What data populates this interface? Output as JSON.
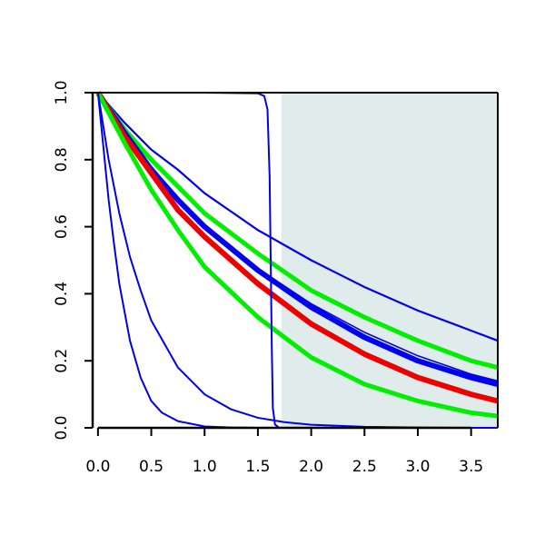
{
  "chart_data": {
    "type": "line",
    "title": "",
    "xlabel": "",
    "ylabel": "",
    "xlim": [
      -0.05,
      3.75
    ],
    "ylim": [
      0.0,
      1.0
    ],
    "x_ticks": [
      0.0,
      0.5,
      1.0,
      1.5,
      2.0,
      2.5,
      3.0,
      3.5
    ],
    "x_tick_labels": [
      "0.0",
      "0.5",
      "1.0",
      "1.5",
      "2.0",
      "2.5",
      "3.0",
      "3.5"
    ],
    "y_ticks": [
      0.0,
      0.2,
      0.4,
      0.6,
      0.8,
      1.0
    ],
    "y_tick_labels": [
      "0.0",
      "0.2",
      "0.4",
      "0.6",
      "0.8",
      "1.0"
    ],
    "grid": false,
    "legend": "none",
    "shaded_region": {
      "x": [
        1.72,
        3.75
      ],
      "color": "#dfeceb"
    },
    "colors": {
      "blue": "#0000ee",
      "green": "#00ee00",
      "red": "#ee0000",
      "axis": "#000000"
    },
    "series": [
      {
        "color": "#0000ee",
        "width": 2.2,
        "x": [
          0,
          0.25,
          0.5,
          0.75,
          1.0,
          1.5,
          2.0,
          2.5,
          3.0,
          3.5,
          3.75
        ],
        "y": [
          1.0,
          0.91,
          0.83,
          0.77,
          0.7,
          0.59,
          0.5,
          0.42,
          0.35,
          0.29,
          0.26
        ]
      },
      {
        "color": "#00ee00",
        "width": 5,
        "x": [
          0,
          0.25,
          0.5,
          0.75,
          1.0,
          1.5,
          2.0,
          2.5,
          3.0,
          3.5,
          3.75
        ],
        "y": [
          1.0,
          0.89,
          0.8,
          0.72,
          0.64,
          0.52,
          0.41,
          0.33,
          0.26,
          0.2,
          0.18
        ]
      },
      {
        "color": "#0000ee",
        "width": 6,
        "x": [
          0,
          0.25,
          0.5,
          0.75,
          1.0,
          1.5,
          2.0,
          2.5,
          3.0,
          3.5,
          3.75
        ],
        "y": [
          1.0,
          0.88,
          0.77,
          0.68,
          0.6,
          0.47,
          0.36,
          0.27,
          0.2,
          0.15,
          0.13
        ]
      },
      {
        "color": "#0000ee",
        "width": 1.6,
        "x": [
          0,
          0.25,
          0.5,
          0.75,
          1.0,
          1.5,
          2.0,
          2.5,
          3.0,
          3.5,
          3.75
        ],
        "y": [
          1.0,
          0.885,
          0.78,
          0.685,
          0.605,
          0.475,
          0.37,
          0.285,
          0.215,
          0.16,
          0.14
        ]
      },
      {
        "color": "#ee0000",
        "width": 6,
        "x": [
          0,
          0.25,
          0.5,
          0.75,
          1.0,
          1.5,
          2.0,
          2.5,
          3.0,
          3.5,
          3.75
        ],
        "y": [
          1.0,
          0.87,
          0.76,
          0.65,
          0.57,
          0.43,
          0.31,
          0.22,
          0.15,
          0.1,
          0.08
        ]
      },
      {
        "color": "#00ee00",
        "width": 5,
        "x": [
          0,
          0.25,
          0.5,
          0.75,
          1.0,
          1.5,
          2.0,
          2.5,
          3.0,
          3.5,
          3.75
        ],
        "y": [
          1.0,
          0.85,
          0.71,
          0.59,
          0.48,
          0.33,
          0.21,
          0.13,
          0.08,
          0.045,
          0.035
        ]
      },
      {
        "color": "#0000ee",
        "width": 2,
        "x": [
          0,
          0.1,
          0.2,
          0.3,
          0.4,
          0.5,
          0.75,
          1.0,
          1.25,
          1.5,
          1.75,
          2.0,
          2.5,
          3.0,
          3.5,
          3.75
        ],
        "y": [
          1.0,
          0.8,
          0.64,
          0.51,
          0.41,
          0.32,
          0.18,
          0.1,
          0.055,
          0.03,
          0.017,
          0.009,
          0.003,
          0.001,
          0.0,
          0.0
        ]
      },
      {
        "color": "#0000ee",
        "width": 2,
        "x": [
          0,
          0.05,
          0.1,
          0.15,
          0.2,
          0.3,
          0.4,
          0.5,
          0.6,
          0.75,
          1.0,
          1.25,
          1.5,
          2.0,
          3.75
        ],
        "y": [
          1.0,
          0.84,
          0.68,
          0.55,
          0.43,
          0.26,
          0.15,
          0.08,
          0.045,
          0.02,
          0.004,
          0.001,
          0.0,
          0.0,
          0.0
        ]
      },
      {
        "color": "#0000ee",
        "width": 2,
        "x": [
          0,
          0.5,
          1.0,
          1.5,
          1.56,
          1.59,
          1.61,
          1.62,
          1.63,
          1.64,
          1.66,
          1.7,
          2.0,
          3.0,
          3.75
        ],
        "y": [
          1.0,
          1.0,
          1.0,
          0.998,
          0.99,
          0.95,
          0.75,
          0.5,
          0.25,
          0.06,
          0.01,
          0.0,
          0.0,
          0.0,
          0.0
        ]
      }
    ]
  }
}
